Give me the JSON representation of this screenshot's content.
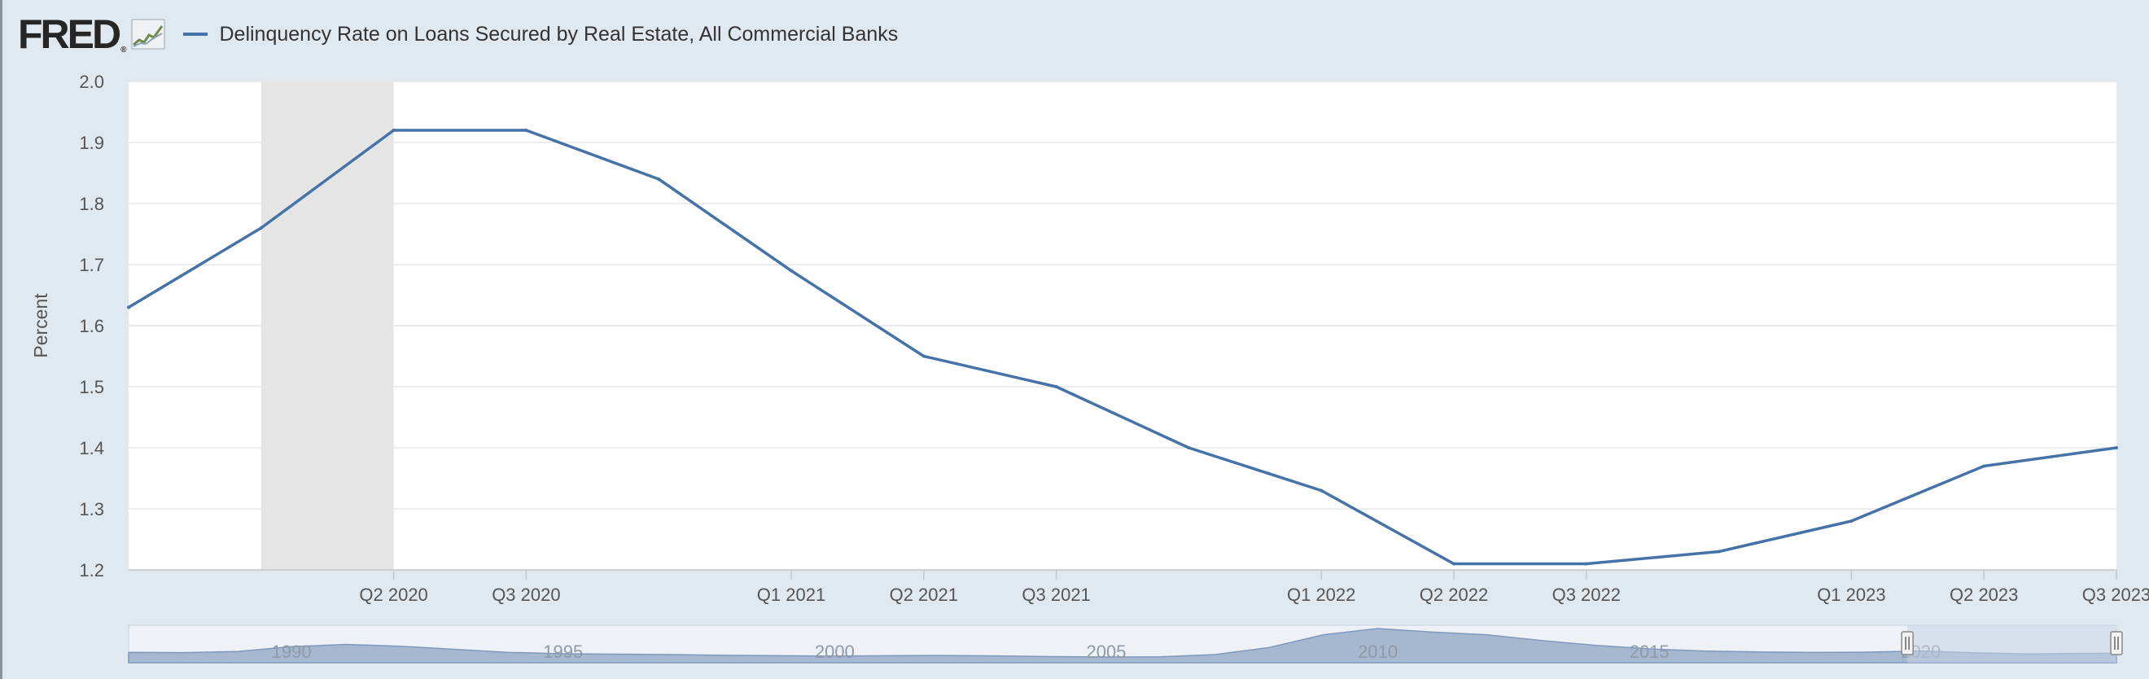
{
  "header": {
    "logo_text": "FRED",
    "logo_reg": "®",
    "legend_label": "Delinquency Rate on Loans Secured by Real Estate, All Commercial Banks"
  },
  "colors": {
    "series": "#4572a7",
    "recession": "#e5e5e5",
    "background": "#e1e9f0",
    "navigator_fill": "#a6b8d0",
    "navigator_selected": "#c6d2e6"
  },
  "chart_data": {
    "type": "line",
    "ylabel": "Percent",
    "ylim": [
      1.2,
      2.0
    ],
    "y_ticks": [
      "1.2",
      "1.3",
      "1.4",
      "1.5",
      "1.6",
      "1.7",
      "1.8",
      "1.9",
      "2.0"
    ],
    "x_range": [
      2019.75,
      2023.5
    ],
    "x_ticks": [
      {
        "label": "Q2 2020",
        "x": 2020.25
      },
      {
        "label": "Q3 2020",
        "x": 2020.5
      },
      {
        "label": "Q1 2021",
        "x": 2021.0
      },
      {
        "label": "Q2 2021",
        "x": 2021.25
      },
      {
        "label": "Q3 2021",
        "x": 2021.5
      },
      {
        "label": "Q1 2022",
        "x": 2022.0
      },
      {
        "label": "Q2 2022",
        "x": 2022.25
      },
      {
        "label": "Q3 2022",
        "x": 2022.5
      },
      {
        "label": "Q1 2023",
        "x": 2023.0
      },
      {
        "label": "Q2 2023",
        "x": 2023.25
      },
      {
        "label": "Q3 2023",
        "x": 2023.5
      }
    ],
    "recession": {
      "start": 2020.0,
      "end": 2020.25
    },
    "series": [
      {
        "values": [
          {
            "date": "2019-10-01",
            "value": 1.63
          },
          {
            "date": "2020-01-01",
            "value": 1.76
          },
          {
            "date": "2020-04-01",
            "value": 1.92
          },
          {
            "date": "2020-07-01",
            "value": 1.92
          },
          {
            "date": "2020-10-01",
            "value": 1.84
          },
          {
            "date": "2021-01-01",
            "value": 1.69
          },
          {
            "date": "2021-04-01",
            "value": 1.55
          },
          {
            "date": "2021-07-01",
            "value": 1.5
          },
          {
            "date": "2021-10-01",
            "value": 1.4
          },
          {
            "date": "2022-01-01",
            "value": 1.33
          },
          {
            "date": "2022-04-01",
            "value": 1.21
          },
          {
            "date": "2022-07-01",
            "value": 1.21
          },
          {
            "date": "2022-10-01",
            "value": 1.23
          },
          {
            "date": "2023-01-01",
            "value": 1.28
          },
          {
            "date": "2023-04-01",
            "value": 1.37
          },
          {
            "date": "2023-07-01",
            "value": 1.4
          }
        ]
      }
    ],
    "navigator": {
      "year_labels": [
        "1990",
        "1995",
        "2000",
        "2005",
        "2010",
        "2015",
        "2020"
      ],
      "year_range": [
        1987,
        2023.6
      ],
      "selected_range": [
        2019.75,
        2023.6
      ],
      "overview": [
        [
          1987,
          1.6
        ],
        [
          1988,
          1.55
        ],
        [
          1989,
          1.8
        ],
        [
          1990,
          2.9
        ],
        [
          1991,
          3.4
        ],
        [
          1992,
          3.0
        ],
        [
          1993,
          2.3
        ],
        [
          1994,
          1.6
        ],
        [
          1995,
          1.3
        ],
        [
          1996,
          1.2
        ],
        [
          1997,
          1.1
        ],
        [
          1998,
          0.95
        ],
        [
          1999,
          0.85
        ],
        [
          2000,
          0.75
        ],
        [
          2001,
          0.85
        ],
        [
          2002,
          0.9
        ],
        [
          2003,
          0.8
        ],
        [
          2004,
          0.65
        ],
        [
          2005,
          0.55
        ],
        [
          2006,
          0.6
        ],
        [
          2007,
          1.1
        ],
        [
          2008,
          2.7
        ],
        [
          2009,
          5.6
        ],
        [
          2010,
          7.0
        ],
        [
          2011,
          6.2
        ],
        [
          2012,
          5.6
        ],
        [
          2013,
          4.3
        ],
        [
          2014,
          3.2
        ],
        [
          2015,
          2.4
        ],
        [
          2016,
          1.9
        ],
        [
          2017,
          1.7
        ],
        [
          2018,
          1.6
        ],
        [
          2019,
          1.65
        ],
        [
          2020,
          1.9
        ],
        [
          2021,
          1.5
        ],
        [
          2022,
          1.25
        ],
        [
          2023,
          1.38
        ],
        [
          2023.6,
          1.4
        ]
      ]
    }
  }
}
